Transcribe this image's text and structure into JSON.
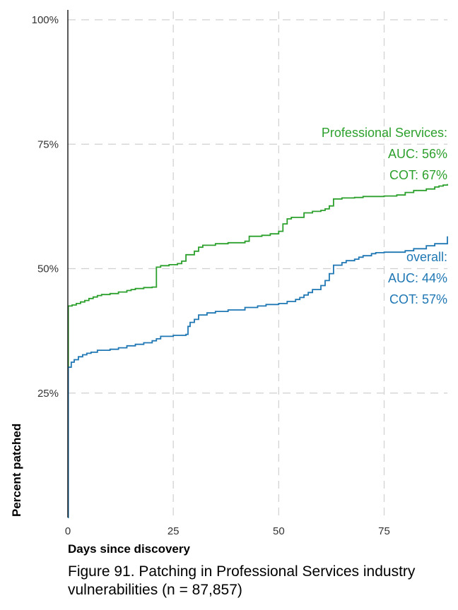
{
  "caption": "Figure 91. Patching in Professional Services industry vulnerabilities (n = 87,857)",
  "chart_data": {
    "type": "line",
    "step": true,
    "xlabel": "Days since discovery",
    "ylabel": "Percent patched",
    "xlim": [
      0,
      90
    ],
    "ylim": [
      0,
      100
    ],
    "x_ticks": [
      0,
      25,
      50,
      75
    ],
    "x_tick_labels": [
      "0",
      "25",
      "50",
      "75"
    ],
    "y_ticks": [
      25,
      50,
      75,
      100
    ],
    "y_tick_labels": [
      "25%",
      "50%",
      "75%",
      "100%"
    ],
    "grid": true,
    "series": [
      {
        "color": "#2ca02c",
        "x": [
          0,
          0.1,
          1,
          2,
          3,
          4,
          5,
          6,
          7,
          8,
          10,
          12,
          14,
          15,
          16,
          18,
          20,
          21,
          22,
          24,
          26,
          27,
          28,
          30,
          31,
          32,
          35,
          38,
          42,
          43,
          46,
          48,
          50,
          51,
          52,
          53,
          56,
          58,
          60,
          61,
          62,
          63,
          65,
          68,
          70,
          75,
          78,
          80,
          82,
          85,
          87,
          88,
          89,
          90
        ],
        "y": [
          0,
          42.5,
          42.7,
          43.0,
          43.3,
          43.6,
          44.0,
          44.3,
          44.6,
          44.8,
          45.0,
          45.3,
          45.6,
          45.8,
          46.0,
          46.2,
          46.3,
          50.3,
          50.6,
          50.8,
          51.0,
          51.5,
          52.8,
          53.5,
          54.3,
          54.7,
          55.0,
          55.2,
          55.5,
          56.5,
          56.7,
          57.0,
          57.5,
          59.0,
          60.0,
          60.3,
          61.2,
          61.5,
          61.7,
          62.0,
          62.6,
          64.0,
          64.2,
          64.3,
          64.5,
          64.6,
          64.8,
          65.3,
          65.7,
          66.0,
          66.4,
          66.6,
          66.8,
          67.0
        ]
      },
      {
        "color": "#1f77b4",
        "x": [
          0,
          0.1,
          0.8,
          1.5,
          2.5,
          3.5,
          4.5,
          5.5,
          7,
          10,
          12,
          14,
          16,
          18,
          20,
          21,
          22,
          25,
          28,
          28.5,
          29,
          30,
          31,
          33,
          35,
          38,
          42,
          45,
          47,
          50,
          52,
          54,
          55,
          56,
          57,
          58,
          60,
          61,
          62,
          63,
          65,
          66,
          68,
          69,
          70,
          72,
          73,
          75,
          80,
          82,
          85,
          87,
          90
        ],
        "y": [
          0,
          30.2,
          31.2,
          31.7,
          32.3,
          32.7,
          33.0,
          33.2,
          33.6,
          33.8,
          34.1,
          34.5,
          34.8,
          35.1,
          35.5,
          35.9,
          36.4,
          36.6,
          36.8,
          38.4,
          39.2,
          39.8,
          40.7,
          41.1,
          41.4,
          41.7,
          42.2,
          42.5,
          42.8,
          43.0,
          43.4,
          43.8,
          44.2,
          44.7,
          45.2,
          45.8,
          46.6,
          47.6,
          49.0,
          50.7,
          51.2,
          51.6,
          51.9,
          52.3,
          52.6,
          53.0,
          53.2,
          53.3,
          53.6,
          54.0,
          54.6,
          55.0,
          56.5
        ]
      }
    ],
    "annotations": [
      {
        "color": "#2ca02c",
        "lines": [
          "Professional Services:",
          "AUC: 56%",
          "COT: 67%"
        ]
      },
      {
        "color": "#1f77b4",
        "lines": [
          "overall:",
          "AUC: 44%",
          "COT: 57%"
        ]
      }
    ]
  }
}
